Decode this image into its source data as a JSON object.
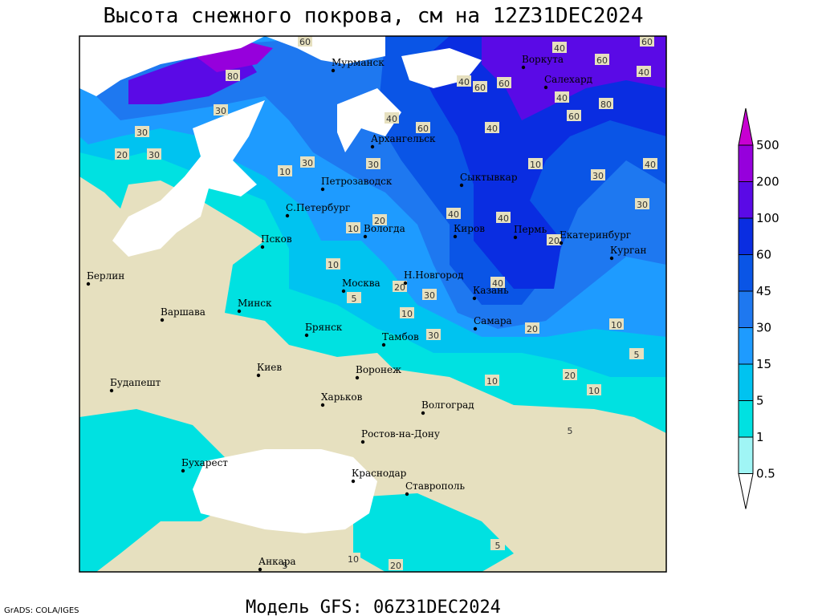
{
  "title": "Высота снежного покрова, см на 12Z31DEC2024",
  "footer": "Модель GFS: 06Z31DEC2024",
  "credit": "GrADS: COLA/IGES",
  "colorbar": {
    "levels": [
      0.5,
      1,
      5,
      15,
      30,
      45,
      60,
      100,
      200,
      500
    ],
    "colors": [
      "#ffffff",
      "#a0f5f5",
      "#00e1e1",
      "#00c3f0",
      "#1e9bff",
      "#1e78f0",
      "#0a55e6",
      "#0a2de1",
      "#5a0ae6",
      "#9600dc",
      "#c800d2"
    ]
  },
  "cities": [
    "Мурманск",
    "Воркута",
    "Салехард",
    "Архангельск",
    "Петрозаводск",
    "Сыктывкар",
    "С.Петербург",
    "Вологда",
    "Киров",
    "Пермь",
    "Екатеринбург",
    "Курган",
    "Псков",
    "Берлин",
    "Н.Новгород",
    "Москва",
    "Казань",
    "Минск",
    "Варшава",
    "Самара",
    "Брянск",
    "Тамбов",
    "Киев",
    "Воронеж",
    "Будапешт",
    "Харьков",
    "Волгоград",
    "Ростов-на-Дону",
    "Бухарест",
    "Краснодар",
    "Ставрополь",
    "Анкара"
  ],
  "contour_labels": [
    60,
    60,
    40,
    40,
    60,
    60,
    60,
    40,
    80,
    80,
    30,
    40,
    60,
    40,
    30,
    60,
    30,
    40,
    10,
    30,
    30,
    40,
    30,
    20,
    30,
    10,
    40,
    40,
    10,
    20,
    20,
    5,
    10,
    30,
    40,
    30,
    10,
    20,
    10,
    5,
    10,
    20,
    10,
    5,
    5,
    20,
    10,
    5,
    20
  ]
}
